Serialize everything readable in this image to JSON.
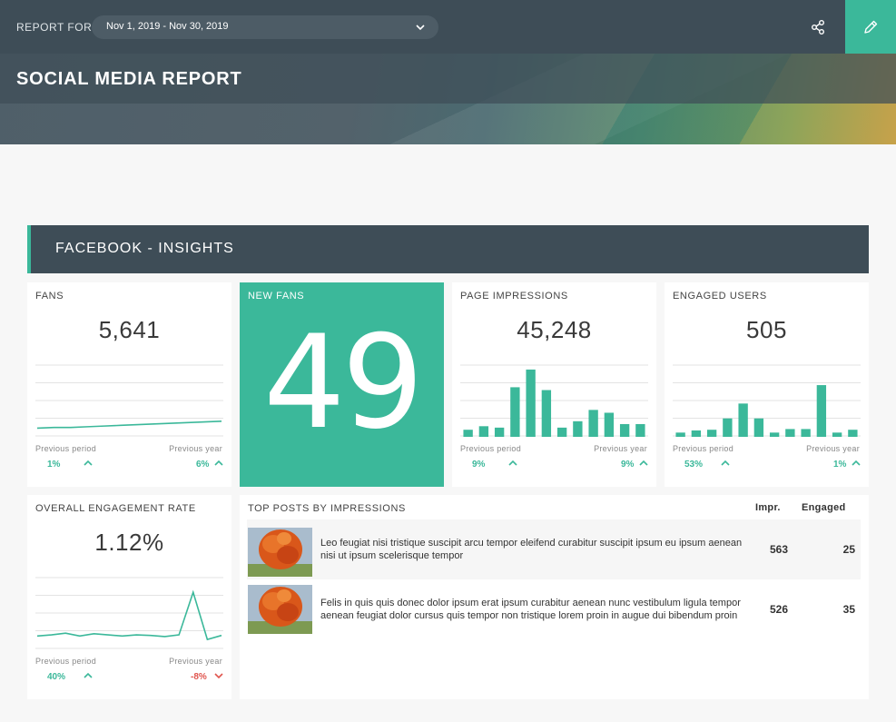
{
  "header": {
    "report_for_label": "REPORT FOR",
    "date_range": "Nov 1, 2019 - Nov 30, 2019",
    "title": "SOCIAL MEDIA REPORT",
    "share_icon": "share-icon",
    "edit_icon": "pencil-icon"
  },
  "colors": {
    "accent": "#3bb89a",
    "dark": "#3e4d57",
    "negative": "#e0554e"
  },
  "section": {
    "title": "FACEBOOK - INSIGHTS"
  },
  "cards": {
    "fans": {
      "label": "FANS",
      "value": "5,641",
      "prev_period_label": "Previous period",
      "prev_year_label": "Previous year",
      "prev_period_change": "1%",
      "prev_year_change": "6%"
    },
    "new_fans": {
      "label": "NEW FANS",
      "value": "49"
    },
    "page_impressions": {
      "label": "PAGE IMPRESSIONS",
      "value": "45,248",
      "prev_period_label": "Previous period",
      "prev_year_label": "Previous year",
      "prev_period_change": "9%",
      "prev_year_change": "9%"
    },
    "engaged_users": {
      "label": "ENGAGED USERS",
      "value": "505",
      "prev_period_label": "Previous period",
      "prev_year_label": "Previous year",
      "prev_period_change": "53%",
      "prev_year_change": "1%"
    },
    "engagement_rate": {
      "label": "OVERALL ENGAGEMENT RATE",
      "value": "1.12%",
      "prev_period_label": "Previous period",
      "prev_year_label": "Previous year",
      "prev_period_change": "40%",
      "prev_year_change": "-8%"
    }
  },
  "top_posts": {
    "label": "TOP POSTS BY IMPRESSIONS",
    "col_impr": "Impr.",
    "col_engaged": "Engaged",
    "rows": [
      {
        "text": "Leo feugiat nisi tristique suscipit arcu tempor eleifend curabitur suscipit ipsum eu ipsum aenean nisi ut ipsum scelerisque tempor",
        "impr": "563",
        "engaged": "25"
      },
      {
        "text": "Felis in quis quis donec dolor ipsum erat ipsum curabitur aenean nunc vestibulum ligula tempor aenean feugiat dolor cursus quis tempor non tristique lorem proin in augue dui bibendum proin",
        "impr": "526",
        "engaged": "35"
      }
    ]
  },
  "chart_data": [
    {
      "type": "line",
      "title": "FANS",
      "values": [
        10,
        11,
        11,
        12,
        13,
        14,
        15,
        16,
        17,
        18,
        19,
        20
      ],
      "ylim": [
        0,
        100
      ]
    },
    {
      "type": "bar",
      "title": "PAGE IMPRESSIONS",
      "values": [
        10,
        15,
        13,
        70,
        95,
        66,
        13,
        22,
        38,
        34,
        18,
        18
      ],
      "ylim": [
        0,
        100
      ]
    },
    {
      "type": "bar",
      "title": "ENGAGED USERS",
      "values": [
        6,
        9,
        10,
        26,
        47,
        26,
        6,
        11,
        11,
        73,
        6,
        10
      ],
      "ylim": [
        0,
        100
      ]
    },
    {
      "type": "line",
      "title": "OVERALL ENGAGEMENT RATE",
      "values": [
        20,
        22,
        25,
        20,
        24,
        22,
        20,
        22,
        21,
        19,
        22,
        96,
        14,
        21
      ],
      "ylim": [
        0,
        120
      ]
    }
  ]
}
